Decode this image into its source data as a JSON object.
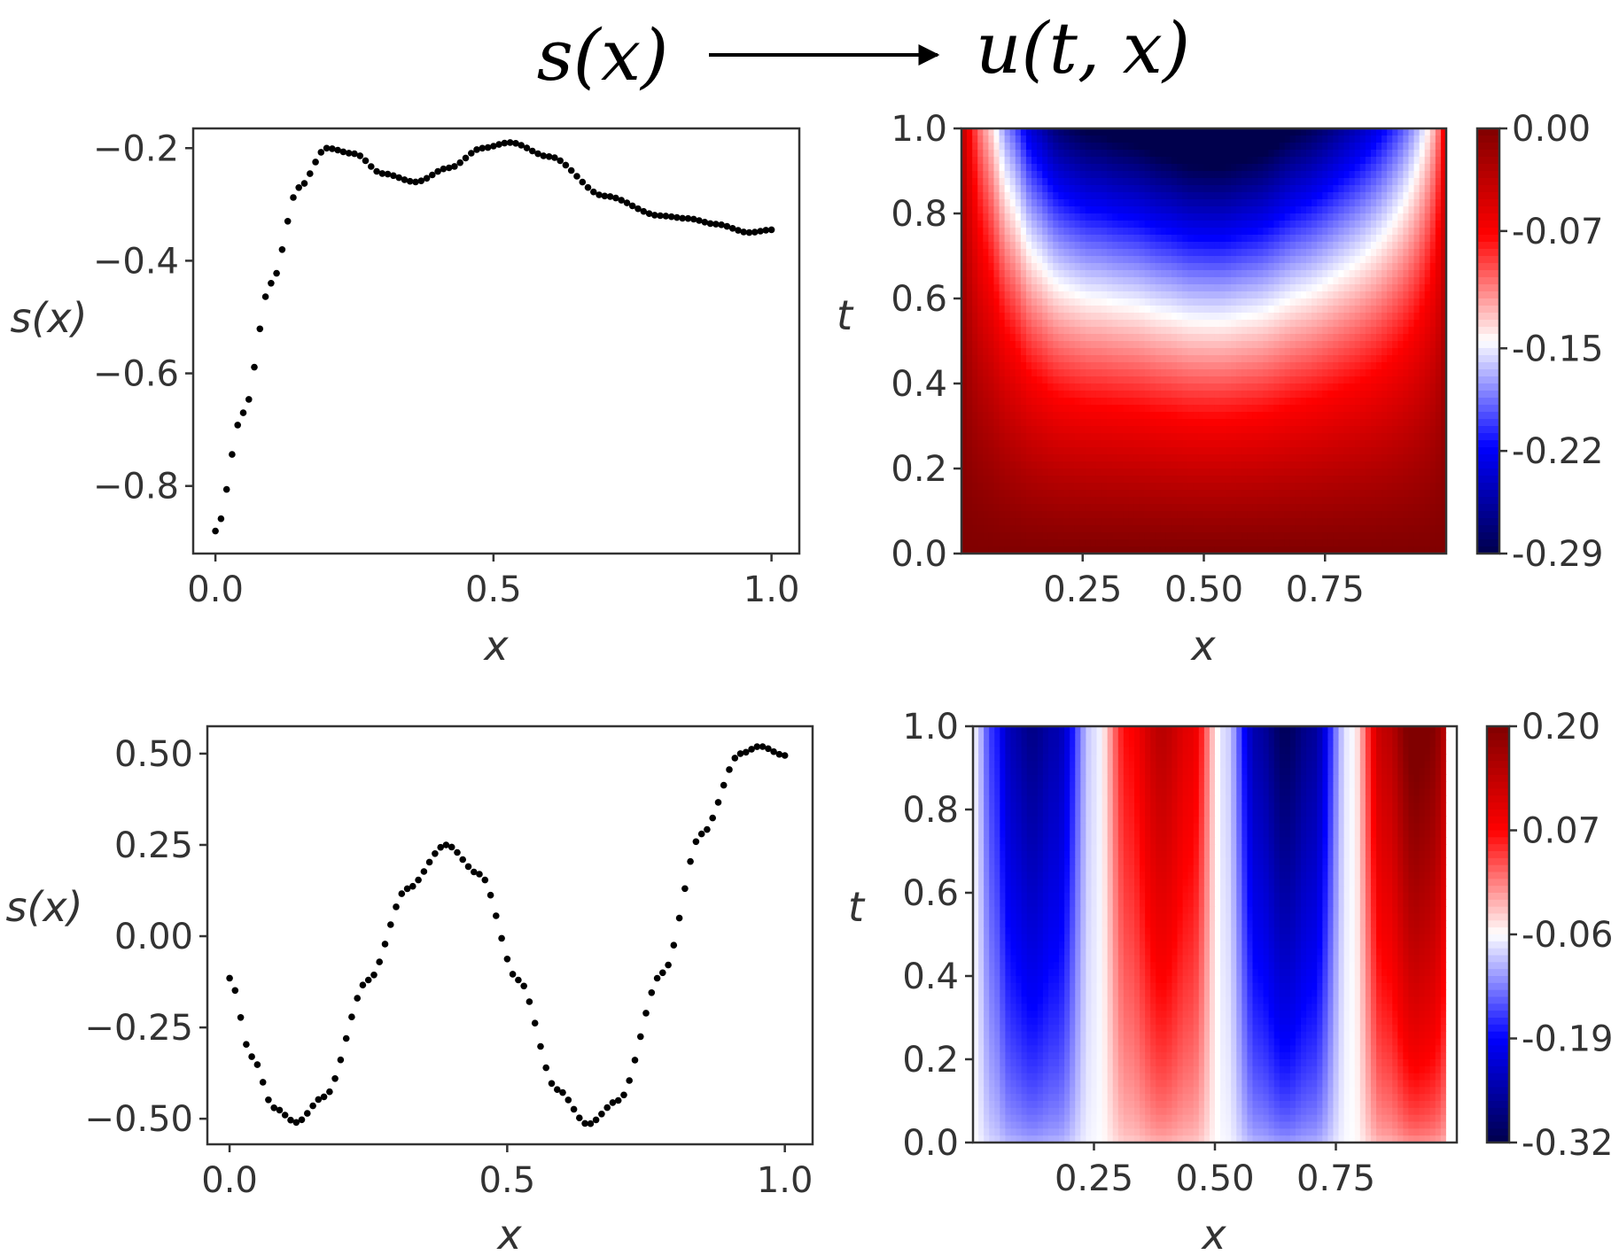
{
  "header": {
    "input_label": "s(x)",
    "output_label": "u(t, x)"
  },
  "chart_data": [
    {
      "id": "s1",
      "type": "scatter",
      "xlabel": "x",
      "ylabel": "s(x)",
      "xlim": [
        -0.04,
        1.05
      ],
      "ylim": [
        -0.92,
        -0.165
      ],
      "xticks": [
        0.0,
        0.5,
        1.0
      ],
      "xtick_labels": [
        "0.0",
        "0.5",
        "1.0"
      ],
      "yticks": [
        -0.8,
        -0.6,
        -0.4,
        -0.2
      ],
      "ytick_labels": [
        "−0.8",
        "−0.6",
        "−0.4",
        "−0.2"
      ],
      "key_points": [
        [
          0.0,
          -0.88
        ],
        [
          0.05,
          -0.67
        ],
        [
          0.1,
          -0.44
        ],
        [
          0.15,
          -0.27
        ],
        [
          0.2,
          -0.2
        ],
        [
          0.25,
          -0.21
        ],
        [
          0.3,
          -0.245
        ],
        [
          0.36,
          -0.26
        ],
        [
          0.42,
          -0.235
        ],
        [
          0.48,
          -0.2
        ],
        [
          0.53,
          -0.19
        ],
        [
          0.6,
          -0.215
        ],
        [
          0.7,
          -0.285
        ],
        [
          0.8,
          -0.32
        ],
        [
          0.85,
          -0.325
        ],
        [
          0.9,
          -0.335
        ],
        [
          0.96,
          -0.35
        ],
        [
          1.0,
          -0.345
        ]
      ],
      "n_points": 101
    },
    {
      "id": "u1",
      "type": "heatmap",
      "xlabel": "x",
      "ylabel": "t",
      "xlim": [
        0.0,
        1.0
      ],
      "ylim": [
        0.0,
        1.0
      ],
      "xticks": [
        0.25,
        0.5,
        0.75
      ],
      "xtick_labels": [
        "0.25",
        "0.50",
        "0.75"
      ],
      "yticks": [
        0.0,
        0.2,
        0.4,
        0.6,
        0.8,
        1.0
      ],
      "ytick_labels": [
        "0.0",
        "0.2",
        "0.4",
        "0.6",
        "0.8",
        "1.0"
      ],
      "colormap": "seismic",
      "colorbar": {
        "min": -0.29,
        "max": 0.0,
        "ticks": [
          0.0,
          -0.07,
          -0.15,
          -0.22,
          -0.29
        ],
        "tick_labels": [
          "0.00",
          "-0.07",
          "-0.15",
          "-0.22",
          "-0.29"
        ]
      },
      "description": "u(t,x) with zero boundaries; initial value near 0 decreasing toward the source profile s(x) as t grows"
    },
    {
      "id": "s2",
      "type": "scatter",
      "xlabel": "x",
      "ylabel": "s(x)",
      "xlim": [
        -0.04,
        1.05
      ],
      "ylim": [
        -0.57,
        0.575
      ],
      "xticks": [
        0.0,
        0.5,
        1.0
      ],
      "xtick_labels": [
        "0.0",
        "0.5",
        "1.0"
      ],
      "yticks": [
        -0.5,
        -0.25,
        0.0,
        0.25,
        0.5
      ],
      "ytick_labels": [
        "−0.50",
        "−0.25",
        "0.00",
        "0.25",
        "0.50"
      ],
      "key_points": [
        [
          0.0,
          -0.115
        ],
        [
          0.04,
          -0.33
        ],
        [
          0.08,
          -0.47
        ],
        [
          0.12,
          -0.51
        ],
        [
          0.17,
          -0.44
        ],
        [
          0.25,
          -0.12
        ],
        [
          0.32,
          0.13
        ],
        [
          0.39,
          0.25
        ],
        [
          0.45,
          0.17
        ],
        [
          0.52,
          -0.12
        ],
        [
          0.59,
          -0.42
        ],
        [
          0.645,
          -0.515
        ],
        [
          0.7,
          -0.45
        ],
        [
          0.78,
          -0.1
        ],
        [
          0.85,
          0.28
        ],
        [
          0.92,
          0.5
        ],
        [
          0.955,
          0.52
        ],
        [
          1.0,
          0.495
        ]
      ],
      "n_points": 101
    },
    {
      "id": "u2",
      "type": "heatmap",
      "xlabel": "x",
      "ylabel": "t",
      "xlim": [
        0.0,
        1.0
      ],
      "ylim": [
        0.0,
        1.0
      ],
      "xticks": [
        0.25,
        0.5,
        0.75
      ],
      "xtick_labels": [
        "0.25",
        "0.50",
        "0.75"
      ],
      "yticks": [
        0.0,
        0.2,
        0.4,
        0.6,
        0.8,
        1.0
      ],
      "ytick_labels": [
        "0.0",
        "0.2",
        "0.4",
        "0.6",
        "0.8",
        "1.0"
      ],
      "colormap": "seismic",
      "colorbar": {
        "min": -0.32,
        "max": 0.2,
        "ticks": [
          0.2,
          0.07,
          -0.06,
          -0.19,
          -0.32
        ],
        "tick_labels": [
          "0.20",
          "0.07",
          "-0.06",
          "-0.19",
          "-0.32"
        ]
      },
      "description": "u(t,x) oscillating in x: blue bands near x=0.13 and x=0.62, red bands near x=0.38 and x=0.9, strengthening with t"
    }
  ]
}
